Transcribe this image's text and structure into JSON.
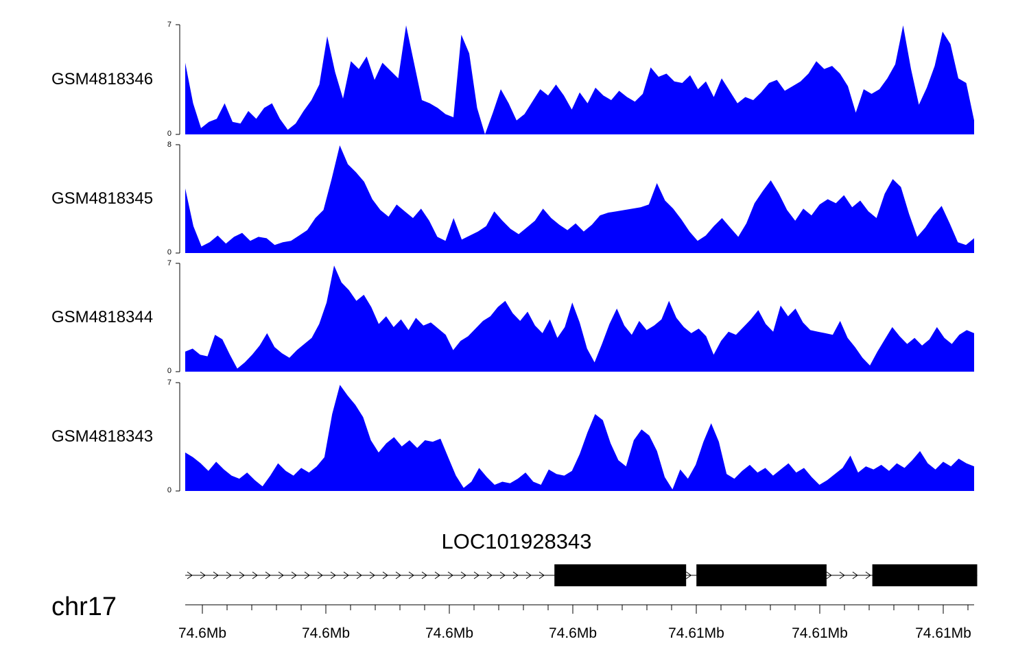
{
  "chart_data": {
    "type": "area",
    "fill_color": "#0000ff",
    "tracks": [
      {
        "name": "GSM4818346",
        "ylim": [
          0,
          7
        ],
        "ymin_label": "0",
        "ymax_label": "7",
        "values": [
          4.6,
          2,
          0.4,
          0.8,
          1,
          2,
          0.8,
          0.7,
          1.5,
          1,
          1.7,
          2,
          1,
          0.3,
          0.7,
          1.5,
          2.2,
          3.2,
          6.3,
          4,
          2.3,
          4.7,
          4.2,
          5,
          3.5,
          4.6,
          4.1,
          3.6,
          7,
          4.6,
          2.2,
          2,
          1.7,
          1.3,
          1.1,
          6.4,
          5.2,
          1.7,
          0,
          1.4,
          2.9,
          2,
          0.9,
          1.3,
          2.1,
          2.9,
          2.5,
          3.2,
          2.5,
          1.6,
          2.7,
          2,
          3,
          2.5,
          2.2,
          2.8,
          2.4,
          2.1,
          2.6,
          4.3,
          3.7,
          3.9,
          3.4,
          3.3,
          3.8,
          2.9,
          3.4,
          2.4,
          3.6,
          2.8,
          2,
          2.4,
          2.2,
          2.7,
          3.3,
          3.5,
          2.8,
          3.1,
          3.4,
          3.9,
          4.7,
          4.2,
          4.4,
          3.9,
          3.1,
          1.4,
          2.9,
          2.6,
          2.9,
          3.6,
          4.5,
          7,
          4.2,
          1.9,
          3,
          4.4,
          6.6,
          5.8,
          3.6,
          3.3,
          0.9
        ]
      },
      {
        "name": "GSM4818345",
        "ylim": [
          0,
          8
        ],
        "ymin_label": "0",
        "ymax_label": "8",
        "values": [
          4.8,
          2,
          0.5,
          0.8,
          1.3,
          0.7,
          1.2,
          1.5,
          0.9,
          1.2,
          1.1,
          0.6,
          0.8,
          0.9,
          1.3,
          1.7,
          2.6,
          3.2,
          5.5,
          8,
          6.6,
          6,
          5.3,
          4,
          3.2,
          2.7,
          3.6,
          3.1,
          2.6,
          3.3,
          2.4,
          1.2,
          0.9,
          2.6,
          1,
          1.3,
          1.6,
          2,
          3.1,
          2.4,
          1.8,
          1.4,
          1.9,
          2.4,
          3.3,
          2.6,
          2.1,
          1.7,
          2.2,
          1.6,
          2.1,
          2.8,
          3,
          3.1,
          3.2,
          3.3,
          3.4,
          3.6,
          5.2,
          3.9,
          3.3,
          2.5,
          1.6,
          0.9,
          1.3,
          2,
          2.6,
          1.9,
          1.2,
          2.2,
          3.7,
          4.6,
          5.4,
          4.4,
          3.2,
          2.4,
          3.3,
          2.8,
          3.6,
          4,
          3.7,
          4.3,
          3.4,
          3.9,
          3.1,
          2.6,
          4.4,
          5.5,
          4.9,
          2.9,
          1.2,
          1.9,
          2.8,
          3.5,
          2.2,
          0.8,
          0.6,
          1.1
        ]
      },
      {
        "name": "GSM4818344",
        "ylim": [
          0,
          7
        ],
        "ymin_label": "0",
        "ymax_label": "7",
        "values": [
          1.3,
          1.5,
          1.1,
          1,
          2.4,
          2.1,
          1.1,
          0.2,
          0.6,
          1.1,
          1.7,
          2.5,
          1.6,
          1.2,
          0.9,
          1.4,
          1.8,
          2.2,
          3.1,
          4.5,
          6.9,
          5.8,
          5.3,
          4.6,
          5,
          4.2,
          3.1,
          3.6,
          2.9,
          3.4,
          2.7,
          3.5,
          3,
          3.2,
          2.8,
          2.4,
          1.4,
          2,
          2.3,
          2.8,
          3.3,
          3.6,
          4.2,
          4.6,
          3.8,
          3.3,
          3.9,
          3,
          2.5,
          3.4,
          2.2,
          2.9,
          4.5,
          3.2,
          1.5,
          0.6,
          1.8,
          3.1,
          4.1,
          3,
          2.4,
          3.3,
          2.7,
          3,
          3.4,
          4.6,
          3.5,
          2.9,
          2.5,
          2.8,
          2.3,
          1.1,
          2,
          2.6,
          2.4,
          2.9,
          3.4,
          4,
          3.1,
          2.6,
          4.3,
          3.6,
          4.1,
          3.2,
          2.7,
          2.6,
          2.5,
          2.4,
          3.3,
          2.2,
          1.6,
          0.9,
          0.4,
          1.3,
          2.1,
          2.9,
          2.3,
          1.8,
          2.2,
          1.7,
          2.1,
          2.9,
          2.2,
          1.8,
          2.4,
          2.7,
          2.5
        ]
      },
      {
        "name": "GSM4818343",
        "ylim": [
          0,
          7
        ],
        "ymin_label": "0",
        "ymax_label": "7",
        "values": [
          2.5,
          2.2,
          1.8,
          1.3,
          1.9,
          1.4,
          1,
          0.8,
          1.2,
          0.7,
          0.3,
          1,
          1.8,
          1.3,
          1,
          1.5,
          1.2,
          1.6,
          2.2,
          5,
          6.9,
          6.2,
          5.6,
          4.8,
          3.3,
          2.5,
          3.1,
          3.5,
          2.9,
          3.3,
          2.8,
          3.3,
          3.2,
          3.4,
          2.2,
          1,
          0.2,
          0.6,
          1.5,
          0.9,
          0.4,
          0.6,
          0.5,
          0.8,
          1.2,
          0.6,
          0.4,
          1.4,
          1.1,
          1,
          1.3,
          2.4,
          3.8,
          5,
          4.6,
          3.1,
          2,
          1.6,
          3.3,
          4,
          3.6,
          2.6,
          0.9,
          0.1,
          1.4,
          0.8,
          1.7,
          3.2,
          4.4,
          3.2,
          1.1,
          0.8,
          1.3,
          1.7,
          1.2,
          1.5,
          1,
          1.4,
          1.8,
          1.2,
          1.5,
          0.9,
          0.4,
          0.7,
          1.1,
          1.5,
          2.3,
          1.2,
          1.6,
          1.4,
          1.7,
          1.3,
          1.8,
          1.5,
          2,
          2.6,
          1.8,
          1.4,
          1.9,
          1.6,
          2.1,
          1.8,
          1.6
        ]
      }
    ],
    "gene_track": {
      "title": "LOC101928343",
      "strand": "right",
      "color": "#000000",
      "exons_frac": [
        [
          0.468,
          0.635
        ],
        [
          0.648,
          0.813
        ],
        [
          0.871,
          1.004
        ]
      ]
    },
    "genome_axis": {
      "chromosome_label": "chr17",
      "tick_labels": [
        "74.6Mb",
        "74.6Mb",
        "74.6Mb",
        "74.6Mb",
        "74.61Mb",
        "74.61Mb",
        "74.61Mb"
      ],
      "minor_ticks_per_major": 5
    }
  }
}
